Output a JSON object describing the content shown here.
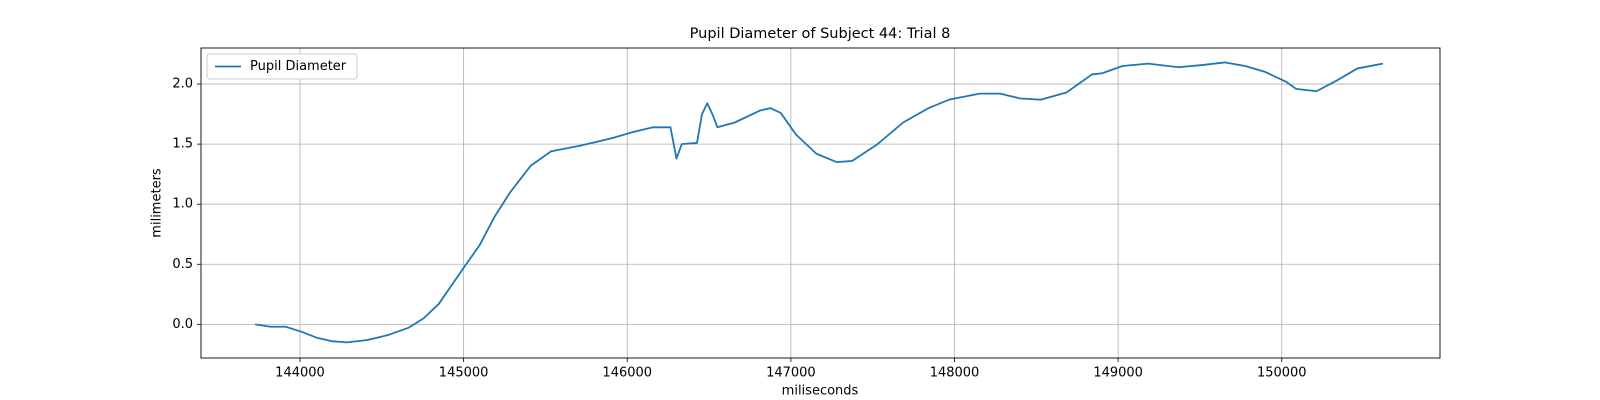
{
  "chart_data": {
    "type": "line",
    "title": "Pupil Diameter of Subject 44: Trial 8",
    "xlabel": "miliseconds",
    "ylabel": "milimeters",
    "x": [
      143726,
      143819,
      143913,
      144006,
      144100,
      144193,
      144287,
      144412,
      144536,
      144661,
      144755,
      144848,
      145000,
      145098,
      145191,
      145285,
      145410,
      145534,
      145721,
      145908,
      146033,
      146158,
      146264,
      146301,
      146333,
      146426,
      146457,
      146489,
      146520,
      146551,
      146657,
      146813,
      146875,
      146938,
      147031,
      147156,
      147281,
      147374,
      147530,
      147686,
      147842,
      147967,
      148154,
      148279,
      148403,
      148528,
      148684,
      148840,
      148903,
      149027,
      149183,
      149370,
      149526,
      149651,
      149776,
      149900,
      150025,
      150088,
      150212,
      150337,
      150462,
      150618
    ],
    "series": [
      {
        "name": "Pupil Diameter",
        "color": "#1f77b4",
        "values": [
          0.0,
          -0.02,
          -0.02,
          -0.06,
          -0.11,
          -0.14,
          -0.15,
          -0.13,
          -0.09,
          -0.03,
          0.05,
          0.17,
          0.47,
          0.66,
          0.9,
          1.1,
          1.32,
          1.44,
          1.49,
          1.55,
          1.6,
          1.64,
          1.64,
          1.38,
          1.5,
          1.51,
          1.75,
          1.84,
          1.75,
          1.64,
          1.68,
          1.78,
          1.8,
          1.76,
          1.58,
          1.42,
          1.35,
          1.36,
          1.5,
          1.68,
          1.8,
          1.87,
          1.92,
          1.92,
          1.88,
          1.87,
          1.93,
          2.08,
          2.09,
          2.15,
          2.17,
          2.14,
          2.16,
          2.18,
          2.15,
          2.1,
          2.02,
          1.96,
          1.94,
          2.03,
          2.13,
          2.17
        ]
      }
    ],
    "xlim": [
      143395,
      150967
    ],
    "ylim": [
      -0.28,
      2.3
    ],
    "xticks": [
      144000,
      145000,
      146000,
      147000,
      148000,
      149000,
      150000
    ],
    "yticks": [
      {
        "value": 0,
        "label": "0.0"
      },
      0.5,
      {
        "value": 1,
        "label": "1.0"
      },
      1.5,
      {
        "value": 2,
        "label": "2.0"
      }
    ],
    "grid": true,
    "legend": "upper-left"
  }
}
